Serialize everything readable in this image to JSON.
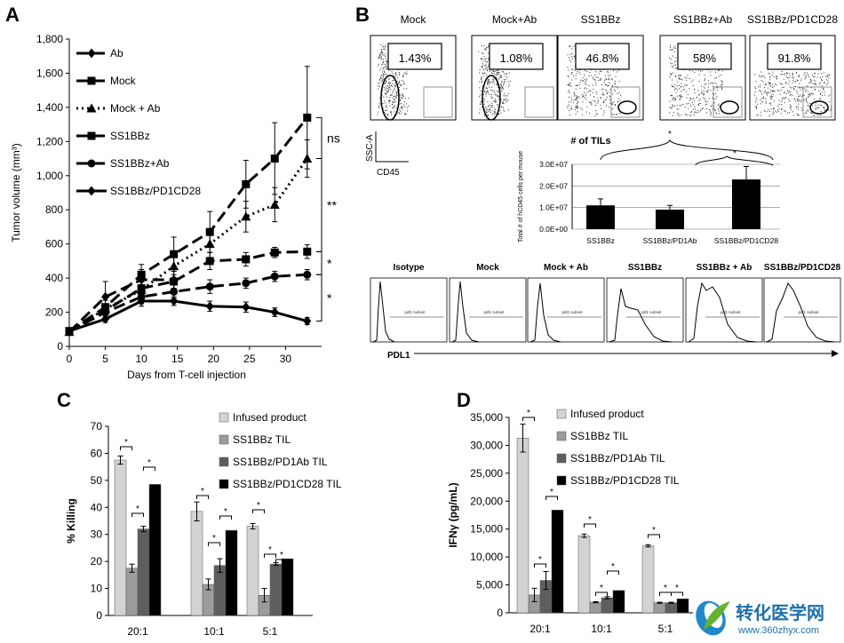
{
  "panel_letters": {
    "a": "A",
    "b": "B",
    "c": "C",
    "d": "D"
  },
  "chart_data": [
    {
      "id": "A",
      "type": "line",
      "xlabel": "Days from T-cell injection",
      "ylabel": "Tumor volume (mm³)",
      "xlim": [
        0,
        35
      ],
      "ylim": [
        0,
        1800
      ],
      "xticks": [
        "0",
        "5",
        "10",
        "15",
        "20",
        "25",
        "30"
      ],
      "yticks": [
        "0",
        "200",
        "400",
        "600",
        "800",
        "1,000",
        "1,200",
        "1,400",
        "1,600",
        "1,800"
      ],
      "legend_position": "top-left",
      "series": [
        {
          "name": "Ab",
          "marker": "diamond",
          "dash": "long",
          "x": [
            0,
            5,
            10,
            14.5
          ],
          "y": [
            85,
            290,
            390,
            390
          ],
          "err": [
            15,
            90,
            60,
            50
          ]
        },
        {
          "name": "Mock",
          "marker": "square",
          "dash": "long",
          "x": [
            0,
            5,
            10,
            14.5,
            19.5,
            24.5,
            28.5,
            33
          ],
          "y": [
            90,
            230,
            420,
            540,
            670,
            950,
            1100,
            1340
          ],
          "err": [
            10,
            60,
            60,
            100,
            120,
            140,
            210,
            300
          ]
        },
        {
          "name": "Mock + Ab",
          "marker": "triangle",
          "dash": "dot",
          "x": [
            0,
            5,
            10,
            14.5,
            19.5,
            24.5,
            28.5,
            33
          ],
          "y": [
            85,
            220,
            330,
            470,
            600,
            760,
            830,
            1100
          ],
          "err": [
            10,
            50,
            50,
            80,
            80,
            90,
            100,
            110
          ]
        },
        {
          "name": "SS1BBz",
          "marker": "square",
          "dash": "long",
          "x": [
            0,
            5,
            10,
            14.5,
            19.5,
            24.5,
            28.5,
            33
          ],
          "y": [
            85,
            210,
            340,
            380,
            500,
            510,
            550,
            555
          ],
          "err": [
            10,
            40,
            40,
            40,
            50,
            40,
            30,
            40
          ]
        },
        {
          "name": "SS1BBz+Ab",
          "marker": "circle",
          "dash": "long",
          "x": [
            0,
            5,
            10,
            14.5,
            19.5,
            24.5,
            28.5,
            33
          ],
          "y": [
            85,
            200,
            290,
            320,
            350,
            370,
            410,
            420
          ],
          "err": [
            10,
            30,
            40,
            40,
            40,
            30,
            30,
            30
          ]
        },
        {
          "name": "SS1BBz/PD1CD28",
          "marker": "diamond",
          "dash": "solid",
          "x": [
            0,
            5,
            10,
            14.5,
            19.5,
            24.5,
            28.5,
            33
          ],
          "y": [
            90,
            160,
            265,
            265,
            235,
            230,
            200,
            148
          ],
          "err": [
            10,
            20,
            30,
            25,
            30,
            30,
            25,
            20
          ]
        }
      ],
      "annotations": [
        "ns",
        "**",
        "*",
        "*"
      ]
    },
    {
      "id": "B_tils",
      "type": "bar",
      "title": "# of TILs",
      "ylabel": "Total # of hCD45 cells per mouse",
      "categories": [
        "SS1BBz",
        "SS1BBz/PD1Ab",
        "SS1BBz/PD1CD28"
      ],
      "values": [
        11000000,
        9000000,
        23000000
      ],
      "err": [
        3000000,
        2000000,
        6000000
      ],
      "ylim": [
        0,
        30000000
      ],
      "yticks": [
        "0.0E+00",
        "1.0E+07",
        "2.0E+07",
        "3.0E+07"
      ],
      "annotations": [
        "*",
        "*"
      ]
    },
    {
      "id": "C",
      "type": "bar",
      "ylabel": "% Killing",
      "categories": [
        "20:1",
        "10:1",
        "5:1"
      ],
      "ylim": [
        0,
        70
      ],
      "yticks": [
        "0",
        "10",
        "20",
        "30",
        "40",
        "50",
        "60",
        "70"
      ],
      "legend_position": "top-right",
      "series": [
        {
          "name": "Infused product",
          "color": "#d3d3d3",
          "values": [
            57.5,
            38.5,
            33
          ],
          "err": [
            1.5,
            3.5,
            1
          ]
        },
        {
          "name": "SS1BBz TIL",
          "color": "#9b9b9b",
          "values": [
            17.5,
            11.5,
            7.5
          ],
          "err": [
            1.5,
            2,
            2.5
          ]
        },
        {
          "name": "SS1BBz/PD1Ab TIL",
          "color": "#5e5e5e",
          "values": [
            32,
            18.5,
            19
          ],
          "err": [
            1,
            2.5,
            0.5
          ]
        },
        {
          "name": "SS1BBz/PD1CD28 TIL",
          "color": "#000000",
          "values": [
            48.5,
            31.5,
            21
          ],
          "err": [
            0,
            0,
            0
          ]
        }
      ],
      "annotations": [
        "*",
        "*",
        "*",
        "*",
        "*",
        "*",
        "*",
        "*",
        "*"
      ]
    },
    {
      "id": "D",
      "type": "bar",
      "ylabel": "IFNγ (pg/mL)",
      "categories": [
        "20:1",
        "10:1",
        "5:1"
      ],
      "ylim": [
        0,
        35000
      ],
      "yticks": [
        "0",
        "5,000",
        "10,000",
        "15,000",
        "20,000",
        "25,000",
        "30,000",
        "35,000"
      ],
      "legend_position": "top-right",
      "series": [
        {
          "name": "Infused product",
          "color": "#d3d3d3",
          "values": [
            31300,
            13800,
            12000
          ],
          "err": [
            2500,
            300,
            200
          ]
        },
        {
          "name": "SS1BBz TIL",
          "color": "#9b9b9b",
          "values": [
            3200,
            1900,
            1800
          ],
          "err": [
            1200,
            100,
            100
          ]
        },
        {
          "name": "SS1BBz/PD1Ab TIL",
          "color": "#5e5e5e",
          "values": [
            5800,
            2700,
            1800
          ],
          "err": [
            1600,
            200,
            100
          ]
        },
        {
          "name": "SS1BBz/PD1CD28 TIL",
          "color": "#000000",
          "values": [
            18400,
            4000,
            2500
          ],
          "err": [
            0,
            0,
            0
          ]
        }
      ],
      "annotations": [
        "*",
        "*",
        "*",
        "*",
        "*",
        "*",
        "*",
        "*",
        "*"
      ]
    }
  ],
  "flow": {
    "titles": [
      "Mock",
      "Mock+Ab",
      "SS1BBz",
      "SS1BBz+Ab",
      "SS1BBz/PD1CD28"
    ],
    "percents": [
      "1.43%",
      "1.08%",
      "46.8%",
      "58%",
      "91.8%"
    ],
    "axis_y": "SSC-A",
    "axis_x": "CD45"
  },
  "pdl1": {
    "titles": [
      "Isotype",
      "Mock",
      "Mock + Ab",
      "SS1BBz",
      "SS1BBz + Ab",
      "SS1BBz/PD1CD28"
    ],
    "gate_label": "pdl1 subset",
    "axis_label": "PDL1"
  },
  "watermark": {
    "text": "转化医学网",
    "url": "www.360zhyx.com",
    "colors": {
      "blue": "#1e88c8",
      "green": "#66b22e"
    }
  }
}
